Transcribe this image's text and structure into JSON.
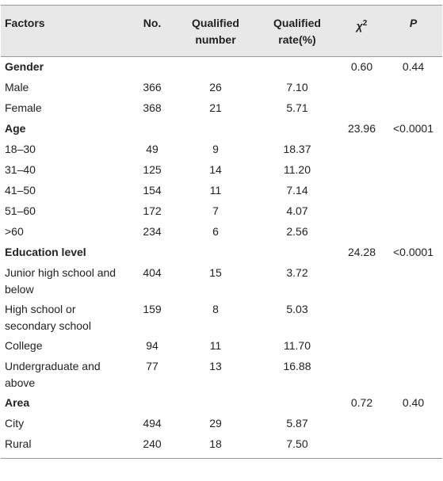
{
  "table": {
    "header": [
      "Factors",
      "No.",
      "Qualified number",
      "Qualified rate(%)",
      "χ",
      "P"
    ],
    "chi_superscript": "2",
    "rows": [
      {
        "factor": "Gender",
        "group": true,
        "chi2": "0.60",
        "p": "0.44"
      },
      {
        "factor": "Male",
        "no": "366",
        "qualified": "26",
        "rate": "7.10"
      },
      {
        "factor": "Female",
        "no": "368",
        "qualified": "21",
        "rate": "5.71"
      },
      {
        "factor": "Age",
        "group": true,
        "chi2": "23.96",
        "p": "<0.0001"
      },
      {
        "factor": "18–30",
        "no": "49",
        "qualified": "9",
        "rate": "18.37"
      },
      {
        "factor": "31–40",
        "no": "125",
        "qualified": "14",
        "rate": "11.20"
      },
      {
        "factor": "41–50",
        "no": "154",
        "qualified": "11",
        "rate": "7.14"
      },
      {
        "factor": "51–60",
        "no": "172",
        "qualified": "7",
        "rate": "4.07"
      },
      {
        "factor": ">60",
        "no": "234",
        "qualified": "6",
        "rate": "2.56"
      },
      {
        "factor": "Education level",
        "group": true,
        "chi2": "24.28",
        "p": "<0.0001"
      },
      {
        "factor": "Junior high school and below",
        "no": "404",
        "qualified": "15",
        "rate": "3.72"
      },
      {
        "factor": "High school or secondary school",
        "no": "159",
        "qualified": "8",
        "rate": "5.03"
      },
      {
        "factor": "College",
        "no": "94",
        "qualified": "11",
        "rate": "11.70"
      },
      {
        "factor": "Undergraduate and above",
        "no": "77",
        "qualified": "13",
        "rate": "16.88"
      },
      {
        "factor": "Area",
        "group": true,
        "chi2": "0.72",
        "p": "0.40"
      },
      {
        "factor": "City",
        "no": "494",
        "qualified": "29",
        "rate": "5.87"
      },
      {
        "factor": "Rural",
        "no": "240",
        "qualified": "18",
        "rate": "7.50"
      }
    ]
  }
}
